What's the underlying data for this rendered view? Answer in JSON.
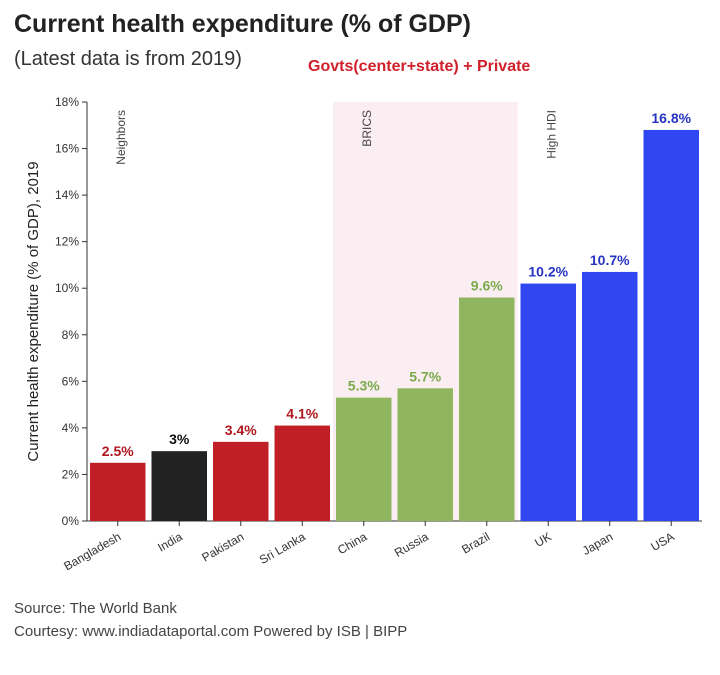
{
  "title": "Current health expenditure (% of GDP)",
  "subtitle": "(Latest data is from 2019)",
  "note": "Govts(center+state) + Private",
  "source": "Source: The World Bank",
  "courtesy": "Courtesy: www.indiadataportal.com Powered by ISB | BIPP",
  "colors": {
    "neighbors": "#c01f25",
    "india": "#222222",
    "brics": "#8fb55e",
    "high_hdi": "#2f46f0",
    "brics_band": "#fbeef2",
    "label_red": "#b0161e",
    "label_green": "#7aaa4b",
    "label_blue": "#2634c2"
  },
  "chart_data": {
    "type": "bar",
    "ylabel": "Current health expenditure (% of GDP), 2019",
    "ylim": [
      0,
      18
    ],
    "yticks": [
      "0%",
      "2%",
      "4%",
      "6%",
      "8%",
      "10%",
      "12%",
      "14%",
      "16%",
      "18%"
    ],
    "categories": [
      "Bangladesh",
      "India",
      "Pakistan",
      "Sri Lanka",
      "China",
      "Russia",
      "Brazil",
      "UK",
      "Japan",
      "USA"
    ],
    "values": [
      2.5,
      3,
      3.4,
      4.1,
      5.3,
      5.7,
      9.6,
      10.2,
      10.7,
      16.8
    ],
    "value_labels": [
      "2.5%",
      "3%",
      "3.4%",
      "4.1%",
      "5.3%",
      "5.7%",
      "9.6%",
      "10.2%",
      "10.7%",
      "16.8%"
    ],
    "groups": [
      "neighbors",
      "india",
      "neighbors",
      "neighbors",
      "brics",
      "brics",
      "brics",
      "high_hdi",
      "high_hdi",
      "high_hdi"
    ],
    "group_labels": [
      {
        "name": "Neighbors",
        "first_index": 0
      },
      {
        "name": "BRICS",
        "first_index": 4
      },
      {
        "name": "High HDI",
        "first_index": 7
      }
    ],
    "grid": false
  }
}
